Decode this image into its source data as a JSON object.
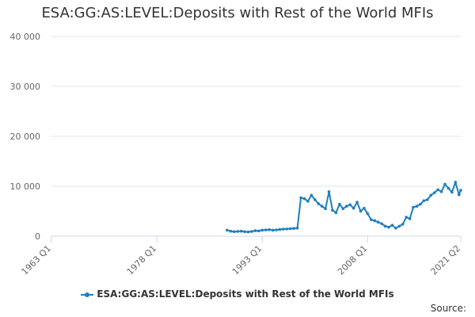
{
  "chart_data": {
    "type": "line",
    "title": "ESA:GG:AS:LEVEL:Deposits with Rest of the World MFIs",
    "xlabel": "",
    "ylabel": "",
    "x_tick_labels": [
      "1963 Q1",
      "1978 Q1",
      "1993 Q1",
      "2008 Q1",
      "2021 Q2"
    ],
    "y_ticks": [
      0,
      10000,
      20000,
      30000,
      40000
    ],
    "y_tick_labels": [
      "0",
      "10 000",
      "20 000",
      "30 000",
      "40 000"
    ],
    "ylim": [
      0,
      40000
    ],
    "xlim": [
      "1963 Q1",
      "2021 Q2"
    ],
    "grid": "horizontal",
    "legend_position": "bottom-center",
    "source_label": "Source:",
    "colors": {
      "series": "#1f7fc0",
      "grid": "#e6e6e6",
      "axis": "#ccd6eb"
    },
    "series": [
      {
        "name": "ESA:GG:AS:LEVEL:Deposits with Rest of the World MFIs",
        "x": [
          "1988 Q1",
          "1988 Q3",
          "1989 Q1",
          "1989 Q3",
          "1990 Q1",
          "1990 Q3",
          "1991 Q1",
          "1991 Q3",
          "1992 Q1",
          "1992 Q3",
          "1993 Q1",
          "1993 Q3",
          "1994 Q1",
          "1994 Q3",
          "1995 Q1",
          "1995 Q3",
          "1996 Q1",
          "1996 Q3",
          "1997 Q1",
          "1997 Q3",
          "1998 Q1",
          "1998 Q3",
          "1999 Q1",
          "1999 Q3",
          "2000 Q1",
          "2000 Q3",
          "2001 Q1",
          "2001 Q3",
          "2002 Q1",
          "2002 Q3",
          "2003 Q1",
          "2003 Q3",
          "2004 Q1",
          "2004 Q3",
          "2005 Q1",
          "2005 Q3",
          "2006 Q1",
          "2006 Q3",
          "2007 Q1",
          "2007 Q3",
          "2008 Q1",
          "2008 Q3",
          "2009 Q1",
          "2009 Q3",
          "2010 Q1",
          "2010 Q3",
          "2011 Q1",
          "2011 Q3",
          "2012 Q1",
          "2012 Q3",
          "2013 Q1",
          "2013 Q3",
          "2014 Q1",
          "2014 Q3",
          "2015 Q1",
          "2015 Q3",
          "2016 Q1",
          "2016 Q3",
          "2017 Q1",
          "2017 Q3",
          "2018 Q1",
          "2018 Q3",
          "2019 Q1",
          "2019 Q3",
          "2020 Q1",
          "2020 Q3",
          "2021 Q1",
          "2021 Q2"
        ],
        "values": [
          1200,
          1000,
          900,
          950,
          1000,
          900,
          850,
          950,
          1100,
          1050,
          1200,
          1250,
          1300,
          1200,
          1250,
          1350,
          1400,
          1450,
          1500,
          1550,
          1600,
          7700,
          7500,
          7000,
          8200,
          7300,
          6500,
          6000,
          5500,
          8900,
          5200,
          4700,
          6400,
          5500,
          6000,
          6300,
          5600,
          6800,
          5000,
          5600,
          4500,
          3300,
          3100,
          2800,
          2500,
          2000,
          1800,
          2200,
          1600,
          2000,
          2400,
          3800,
          3500,
          5800,
          6000,
          6400,
          7100,
          7300,
          8200,
          8700,
          9300,
          8900,
          10400,
          9600,
          8800,
          10800,
          8300,
          9200
        ]
      }
    ]
  }
}
